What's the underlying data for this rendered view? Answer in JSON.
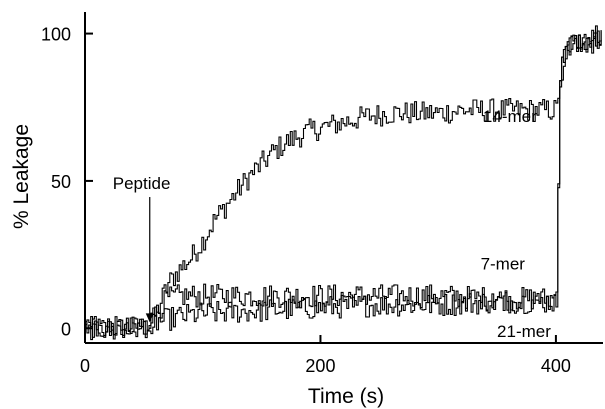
{
  "chart_data": {
    "type": "line",
    "xlabel": "Time (s)",
    "ylabel": "% Leakage",
    "xlim": [
      0,
      440
    ],
    "ylim": [
      -5,
      108
    ],
    "xticks": [
      0,
      200,
      400
    ],
    "yticks": [
      0,
      50,
      100
    ],
    "grid": false,
    "series": [
      {
        "name": "14-mer",
        "x": [
          0,
          20,
          40,
          55,
          60,
          65,
          70,
          80,
          90,
          100,
          110,
          120,
          130,
          140,
          150,
          160,
          170,
          180,
          190,
          200,
          220,
          240,
          260,
          280,
          300,
          320,
          340,
          360,
          380,
          395,
          400,
          403,
          406,
          410,
          420,
          430,
          440
        ],
        "y": [
          0,
          0,
          0,
          1,
          5,
          10,
          15,
          20,
          24,
          30,
          37,
          42,
          47,
          52,
          56,
          60,
          63,
          65,
          67,
          68,
          70,
          72,
          73,
          73,
          73,
          74,
          74,
          74,
          74,
          74,
          74,
          85,
          92,
          96,
          98,
          99,
          100
        ]
      },
      {
        "name": "7-mer",
        "x": [
          0,
          20,
          40,
          55,
          60,
          65,
          70,
          80,
          100,
          150,
          200,
          250,
          300,
          350,
          395,
          400,
          403,
          406,
          410,
          420,
          430,
          440
        ],
        "y": [
          0,
          0,
          0,
          1,
          5,
          8,
          10,
          11,
          11,
          11,
          11,
          11,
          11,
          10,
          10,
          11,
          85,
          92,
          96,
          97,
          98,
          98
        ]
      },
      {
        "name": "21-mer",
        "x": [
          0,
          20,
          40,
          55,
          60,
          80,
          100,
          150,
          200,
          250,
          300,
          350,
          395,
          400,
          403,
          406,
          410,
          420,
          430,
          440
        ],
        "y": [
          0,
          0,
          0,
          1,
          2,
          4,
          5,
          6,
          7,
          8,
          8,
          9,
          9,
          9,
          85,
          90,
          95,
          96,
          97,
          97
        ]
      }
    ],
    "annotations": [
      {
        "text": "Peptide",
        "x": 55,
        "y": 52
      }
    ]
  }
}
